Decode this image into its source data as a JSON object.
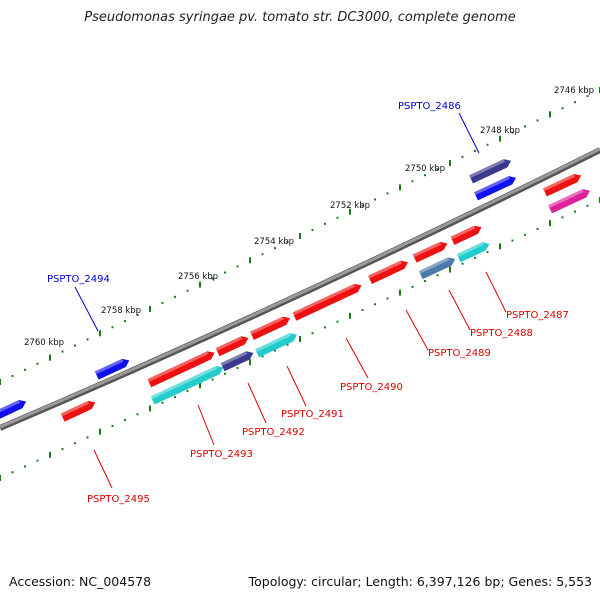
{
  "title": "Pseudomonas syringae pv. tomato str. DC3000, complete genome",
  "footer": {
    "accession": "Accession: NC_004578",
    "topology": "Topology: circular; Length: 6,397,126 bp; Genes: 5,553"
  },
  "colors": {
    "backbone": "#888888",
    "tick": "#1a7a1a",
    "red_gene": "#ee1111",
    "blue_gene": "#1111ee",
    "cyan_gene": "#22cccc",
    "navy_gene": "#3a3a8c",
    "steel_gene": "#4a7aaa",
    "magenta_gene": "#dd2299",
    "label_red": "#dd0000",
    "label_blue": "#0000cc"
  },
  "scale_labels": [
    "2746 kbp",
    "2748 kbp",
    "2750 kbp",
    "2752 kbp",
    "2754 kbp",
    "2756 kbp",
    "2758 kbp",
    "2760 kbp"
  ],
  "gene_labels": [
    {
      "text": "PSPTO_2486",
      "color": "blue"
    },
    {
      "text": "PSPTO_2487",
      "color": "red"
    },
    {
      "text": "PSPTO_2488",
      "color": "red"
    },
    {
      "text": "PSPTO_2489",
      "color": "red"
    },
    {
      "text": "PSPTO_2490",
      "color": "red"
    },
    {
      "text": "PSPTO_2491",
      "color": "red"
    },
    {
      "text": "PSPTO_2492",
      "color": "red"
    },
    {
      "text": "PSPTO_2493",
      "color": "red"
    },
    {
      "text": "PSPTO_2494",
      "color": "blue"
    },
    {
      "text": "PSPTO_2495",
      "color": "red"
    }
  ]
}
